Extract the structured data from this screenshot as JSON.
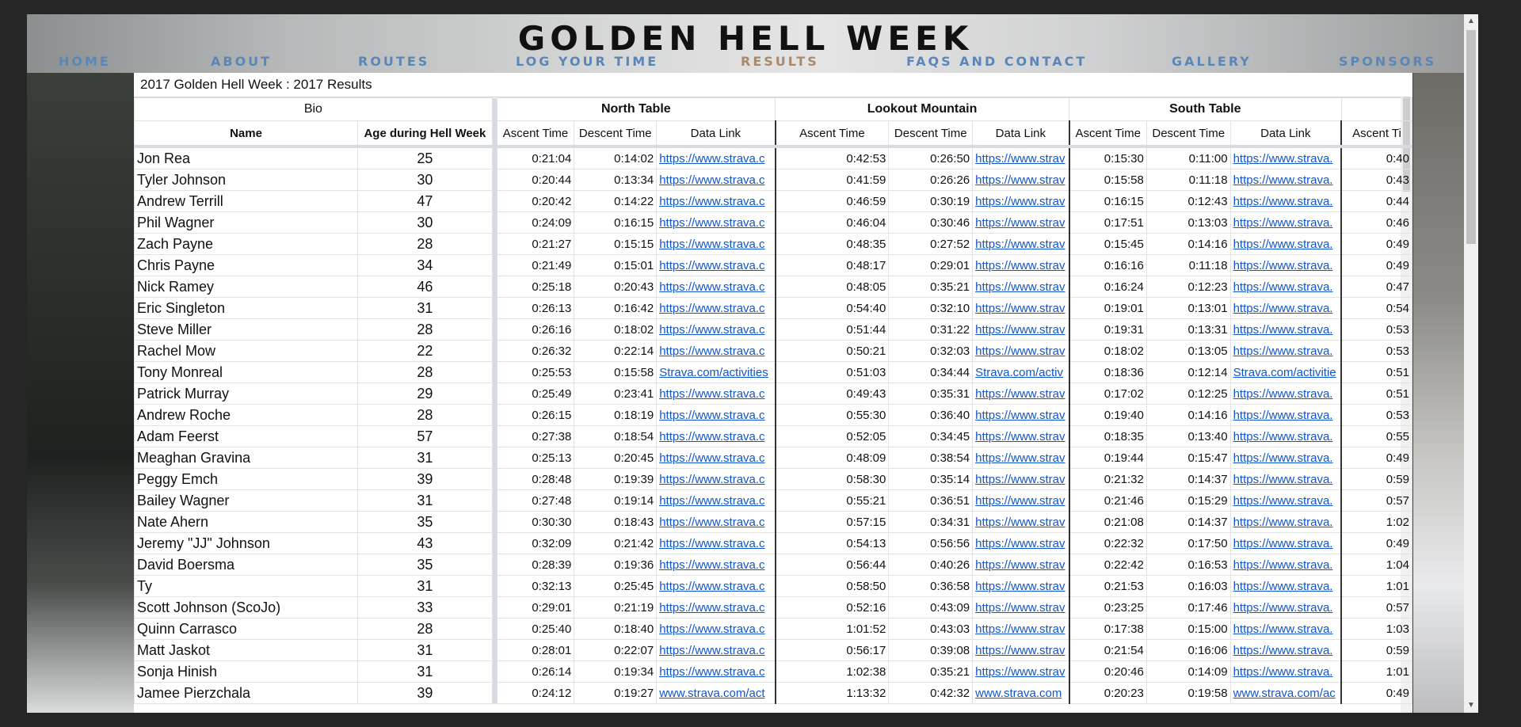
{
  "site": {
    "title": "GOLDEN HELL WEEK",
    "nav": [
      "HOME",
      "ABOUT",
      "ROUTES",
      "LOG YOUR TIME",
      "RESULTS",
      "FAQS AND CONTACT",
      "GALLERY",
      "SPONSORS"
    ],
    "active_nav": "RESULTS",
    "accent": "#5b86b8",
    "active_color": "#a98a6c"
  },
  "sheet": {
    "title": "2017 Golden Hell Week : 2017 Results",
    "groups": {
      "bio": "Bio",
      "north": "North Table",
      "lookout": "Lookout Mountain",
      "south": "South Table"
    },
    "columns": {
      "name": "Name",
      "age": "Age during Hell Week",
      "ascent": "Ascent Time",
      "descent": "Descent Time",
      "link": "Data Link",
      "ascent_partial": "Ascent Ti"
    }
  },
  "rows": [
    [
      "Jon Rea",
      "25",
      "0:21:04",
      "0:14:02",
      "https://www.strava.c",
      "0:42:53",
      "0:26:50",
      "https://www.strav",
      "0:15:30",
      "0:11:00",
      "https://www.strava.",
      "0:40"
    ],
    [
      "Tyler Johnson",
      "30",
      "0:20:44",
      "0:13:34",
      "https://www.strava.c",
      "0:41:59",
      "0:26:26",
      "https://www.strav",
      "0:15:58",
      "0:11:18",
      "https://www.strava.",
      "0:43"
    ],
    [
      "Andrew Terrill",
      "47",
      "0:20:42",
      "0:14:22",
      "https://www.strava.c",
      "0:46:59",
      "0:30:19",
      "https://www.strav",
      "0:16:15",
      "0:12:43",
      "https://www.strava.",
      "0:44"
    ],
    [
      "Phil Wagner",
      "30",
      "0:24:09",
      "0:16:15",
      "https://www.strava.c",
      "0:46:04",
      "0:30:46",
      "https://www.strav",
      "0:17:51",
      "0:13:03",
      "https://www.strava.",
      "0:46"
    ],
    [
      "Zach Payne",
      "28",
      "0:21:27",
      "0:15:15",
      "https://www.strava.c",
      "0:48:35",
      "0:27:52",
      "https://www.strav",
      "0:15:45",
      "0:14:16",
      "https://www.strava.",
      "0:49"
    ],
    [
      "Chris Payne",
      "34",
      "0:21:49",
      "0:15:01",
      "https://www.strava.c",
      "0:48:17",
      "0:29:01",
      "https://www.strav",
      "0:16:16",
      "0:11:18",
      "https://www.strava.",
      "0:49"
    ],
    [
      "Nick Ramey",
      "46",
      "0:25:18",
      "0:20:43",
      "https://www.strava.c",
      "0:48:05",
      "0:35:21",
      "https://www.strav",
      "0:16:24",
      "0:12:23",
      "https://www.strava.",
      "0:47"
    ],
    [
      "Eric Singleton",
      "31",
      "0:26:13",
      "0:16:42",
      "https://www.strava.c",
      "0:54:40",
      "0:32:10",
      "https://www.strav",
      "0:19:01",
      "0:13:01",
      "https://www.strava.",
      "0:54"
    ],
    [
      "Steve Miller",
      "28",
      "0:26:16",
      "0:18:02",
      "https://www.strava.c",
      "0:51:44",
      "0:31:22",
      "https://www.strav",
      "0:19:31",
      "0:13:31",
      "https://www.strava.",
      "0:53"
    ],
    [
      "Rachel Mow",
      "22",
      "0:26:32",
      "0:22:14",
      "https://www.strava.c",
      "0:50:21",
      "0:32:03",
      "https://www.strav",
      "0:18:02",
      "0:13:05",
      "https://www.strava.",
      "0:53"
    ],
    [
      "Tony Monreal",
      "28",
      "0:25:53",
      "0:15:58",
      "Strava.com/activities",
      "0:51:03",
      "0:34:44",
      "Strava.com/activ",
      "0:18:36",
      "0:12:14",
      "Strava.com/activitie",
      "0:51"
    ],
    [
      "Patrick Murray",
      "29",
      "0:25:49",
      "0:23:41",
      "https://www.strava.c",
      "0:49:43",
      "0:35:31",
      "https://www.strav",
      "0:17:02",
      "0:12:25",
      "https://www.strava.",
      "0:51"
    ],
    [
      "Andrew Roche",
      "28",
      "0:26:15",
      "0:18:19",
      "https://www.strava.c",
      "0:55:30",
      "0:36:40",
      "https://www.strav",
      "0:19:40",
      "0:14:16",
      "https://www.strava.",
      "0:53"
    ],
    [
      "Adam Feerst",
      "57",
      "0:27:38",
      "0:18:54",
      "https://www.strava.c",
      "0:52:05",
      "0:34:45",
      "https://www.strav",
      "0:18:35",
      "0:13:40",
      "https://www.strava.",
      "0:55"
    ],
    [
      "Meaghan Gravina",
      "31",
      "0:25:13",
      "0:20:45",
      "https://www.strava.c",
      "0:48:09",
      "0:38:54",
      "https://www.strav",
      "0:19:44",
      "0:15:47",
      "https://www.strava.",
      "0:49"
    ],
    [
      "Peggy Emch",
      "39",
      "0:28:48",
      "0:19:39",
      "https://www.strava.c",
      "0:58:30",
      "0:35:14",
      "https://www.strav",
      "0:21:32",
      "0:14:37",
      "https://www.strava.",
      "0:59"
    ],
    [
      "Bailey Wagner",
      "31",
      "0:27:48",
      "0:19:14",
      "https://www.strava.c",
      "0:55:21",
      "0:36:51",
      "https://www.strav",
      "0:21:46",
      "0:15:29",
      "https://www.strava.",
      "0:57"
    ],
    [
      "Nate Ahern",
      "35",
      "0:30:30",
      "0:18:43",
      "https://www.strava.c",
      "0:57:15",
      "0:34:31",
      "https://www.strav",
      "0:21:08",
      "0:14:37",
      "https://www.strava.",
      "1:02"
    ],
    [
      "Jeremy \"JJ\" Johnson",
      "43",
      "0:32:09",
      "0:21:42",
      "https://www.strava.c",
      "0:54:13",
      "0:56:56",
      "https://www.strav",
      "0:22:32",
      "0:17:50",
      "https://www.strava.",
      "0:49"
    ],
    [
      "David Boersma",
      "35",
      "0:28:39",
      "0:19:36",
      "https://www.strava.c",
      "0:56:44",
      "0:40:26",
      "https://www.strav",
      "0:22:42",
      "0:16:53",
      "https://www.strava.",
      "1:04"
    ],
    [
      "Ty",
      "31",
      "0:32:13",
      "0:25:45",
      "https://www.strava.c",
      "0:58:50",
      "0:36:58",
      "https://www.strav",
      "0:21:53",
      "0:16:03",
      "https://www.strava.",
      "1:01"
    ],
    [
      "Scott Johnson (ScoJo)",
      "33",
      "0:29:01",
      "0:21:19",
      "https://www.strava.c",
      "0:52:16",
      "0:43:09",
      "https://www.strav",
      "0:23:25",
      "0:17:46",
      "https://www.strava.",
      "0:57"
    ],
    [
      "Quinn Carrasco",
      "28",
      "0:25:40",
      "0:18:40",
      "https://www.strava.c",
      "1:01:52",
      "0:43:03",
      "https://www.strav",
      "0:17:38",
      "0:15:00",
      "https://www.strava.",
      "1:03"
    ],
    [
      "Matt Jaskot",
      "31",
      "0:28:01",
      "0:22:07",
      "https://www.strava.c",
      "0:56:17",
      "0:39:08",
      "https://www.strav",
      "0:21:54",
      "0:16:06",
      "https://www.strava.",
      "0:59"
    ],
    [
      "Sonja Hinish",
      "31",
      "0:26:14",
      "0:19:34",
      "https://www.strava.c",
      "1:02:38",
      "0:35:21",
      "https://www.strav",
      "0:20:46",
      "0:14:09",
      "https://www.strava.",
      "1:01"
    ],
    [
      "Jamee Pierzchala",
      "39",
      "0:24:12",
      "0:19:27",
      "www.strava.com/act",
      "1:13:32",
      "0:42:32",
      "www.strava.com",
      "0:20:23",
      "0:19:58",
      "www.strava.com/ac",
      "0:49"
    ]
  ]
}
